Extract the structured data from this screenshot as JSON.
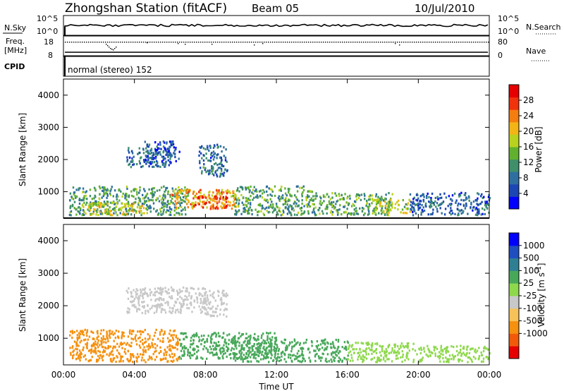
{
  "header": {
    "station": "Zhongshan Station (fitACF)",
    "beam": "Beam 05",
    "date": "10/Jul/2010"
  },
  "summary": {
    "nsky_label": "N.Sky",
    "nsearch_label": "N.Search",
    "freq_label_1": "Freq.",
    "freq_label_2": "[MHz]",
    "nave_label": "Nave",
    "cpid_label": "CPID",
    "cpid_value": "normal (stereo) 152",
    "nsky_ticks": [
      "10^5",
      "10^0"
    ],
    "nsearch_ticks": [
      "10^5",
      "10^0"
    ],
    "freq_ticks": [
      "18",
      "8"
    ],
    "nave_ticks": [
      "80",
      "0"
    ]
  },
  "colors": {
    "power": [
      "#0000ff",
      "#1c46b4",
      "#2f6fa0",
      "#3f8f6b",
      "#61b12f",
      "#b9d21e",
      "#f2b515",
      "#f57d0f",
      "#f0320d",
      "#e60000"
    ],
    "velocity": [
      "#e60000",
      "#f25a0a",
      "#f5910f",
      "#f8c25a",
      "#c8c8c8",
      "#8ed84c",
      "#48a85a",
      "#2f7f93",
      "#1f4ec0",
      "#0000ff"
    ]
  },
  "chart_data": [
    {
      "type": "heatmap",
      "panel": "power",
      "xlabel": "Time UT",
      "ylabel": "Slant Range [km]",
      "x_ticks": [
        "00:00",
        "04:00",
        "08:00",
        "12:00",
        "16:00",
        "20:00",
        "00:00"
      ],
      "x_range_hours": [
        0,
        24
      ],
      "ylim": [
        180,
        4500
      ],
      "y_ticks": [
        1000,
        2000,
        3000,
        4000
      ],
      "colorbar_label": "Power [dB]",
      "colorbar_ticks": [
        4,
        8,
        12,
        16,
        20,
        24,
        28
      ],
      "colorbar_range": [
        0,
        32
      ],
      "echo_regions": [
        {
          "t": [
            0.3,
            7.0
          ],
          "r": [
            300,
            1200
          ],
          "level": 12
        },
        {
          "t": [
            1.0,
            4.5
          ],
          "r": [
            300,
            700
          ],
          "level": 18
        },
        {
          "t": [
            3.5,
            6.0
          ],
          "r": [
            1800,
            2400
          ],
          "level": 8
        },
        {
          "t": [
            4.5,
            6.5
          ],
          "r": [
            1900,
            2600
          ],
          "level": 6
        },
        {
          "t": [
            6.0,
            9.7
          ],
          "r": [
            500,
            1100
          ],
          "level": 22
        },
        {
          "t": [
            7.3,
            9.2
          ],
          "r": [
            500,
            900
          ],
          "level": 27
        },
        {
          "t": [
            7.6,
            9.2
          ],
          "r": [
            1500,
            2500
          ],
          "level": 8
        },
        {
          "t": [
            9.5,
            14.0
          ],
          "r": [
            300,
            1200
          ],
          "level": 12
        },
        {
          "t": [
            14.0,
            18.5
          ],
          "r": [
            300,
            1000
          ],
          "level": 13
        },
        {
          "t": [
            17.5,
            19.5
          ],
          "r": [
            350,
            800
          ],
          "level": 17
        },
        {
          "t": [
            19.5,
            24.0
          ],
          "r": [
            300,
            1000
          ],
          "level": 7
        }
      ]
    },
    {
      "type": "heatmap",
      "panel": "velocity",
      "xlabel": "Time UT",
      "ylabel": "Slant Range [km]",
      "x_ticks": [
        "00:00",
        "04:00",
        "08:00",
        "12:00",
        "16:00",
        "20:00",
        "00:00"
      ],
      "x_range_hours": [
        0,
        24
      ],
      "ylim": [
        180,
        4500
      ],
      "y_ticks": [
        1000,
        2000,
        3000,
        4000
      ],
      "colorbar_label": "Velocity [m s^-1]",
      "colorbar_ticks": [
        "1000",
        "500",
        "100",
        "25",
        "-25",
        "-100",
        "-500",
        "-1000"
      ],
      "echo_regions": [
        {
          "t": [
            0.3,
            6.5
          ],
          "r": [
            300,
            1300
          ],
          "level": -150
        },
        {
          "t": [
            3.5,
            8.0
          ],
          "r": [
            1800,
            2600
          ],
          "level": 0
        },
        {
          "t": [
            7.6,
            9.2
          ],
          "r": [
            1700,
            2500
          ],
          "level": 10
        },
        {
          "t": [
            6.5,
            12.0
          ],
          "r": [
            400,
            1200
          ],
          "level": 120
        },
        {
          "t": [
            9.5,
            16.0
          ],
          "r": [
            300,
            1000
          ],
          "level": 250
        },
        {
          "t": [
            16.0,
            20.5
          ],
          "r": [
            300,
            900
          ],
          "level": 60
        },
        {
          "t": [
            20.5,
            24.0
          ],
          "r": [
            300,
            800
          ],
          "level": 30
        }
      ]
    }
  ]
}
